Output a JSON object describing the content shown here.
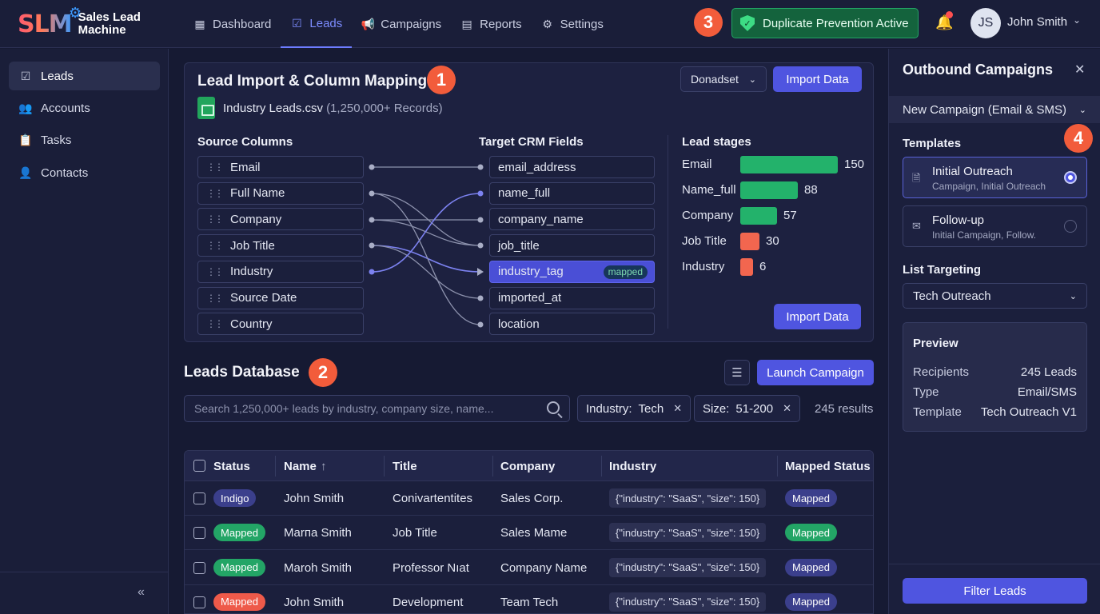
{
  "app": {
    "logo_mark": "SLM",
    "logo_line1": "Sales Lead",
    "logo_line2": "Machine"
  },
  "nav": {
    "items": [
      {
        "label": "Dashboard",
        "icon": "grid-icon"
      },
      {
        "label": "Leads",
        "icon": "checkbox-icon",
        "active": true
      },
      {
        "label": "Campaigns",
        "icon": "megaphone-icon"
      },
      {
        "label": "Reports",
        "icon": "report-icon"
      },
      {
        "label": "Settings",
        "icon": "gear-icon"
      }
    ],
    "duplicate_prevention": "Duplicate Prevention Active",
    "user": {
      "initials": "JS",
      "name": "John Smith"
    }
  },
  "callouts": {
    "one": "1",
    "two": "2",
    "three": "3",
    "four": "4"
  },
  "sidebar": {
    "items": [
      {
        "label": "Leads",
        "active": true
      },
      {
        "label": "Accounts"
      },
      {
        "label": "Tasks"
      },
      {
        "label": "Contacts"
      }
    ],
    "collapse_glyph": "«"
  },
  "import": {
    "title": "Lead Import & Column Mapping",
    "file_name": "Industry Leads.csv",
    "file_records": "(1,250,000+ Records)",
    "dataset_select": "Donadset",
    "import_button": "Import Data",
    "import_button_bottom": "Import Data",
    "source_heading": "Source Columns",
    "target_heading": "Target CRM Fields",
    "stages_heading": "Lead stages",
    "source_columns": [
      "Email",
      "Full Name",
      "Company",
      "Job Title",
      "Industry",
      "Source Date",
      "Country"
    ],
    "target_fields": [
      "email_address",
      "name_full",
      "company_name",
      "job_title",
      "industry_tag",
      "imported_at",
      "location"
    ],
    "mapped_tag": "mapped",
    "stages": [
      {
        "label": "Email",
        "value": 150,
        "color": "#23b26b"
      },
      {
        "label": "Name_full",
        "value": 88,
        "color": "#23b26b"
      },
      {
        "label": "Company",
        "value": 57,
        "color": "#23b26b"
      },
      {
        "label": "Job Title",
        "value": 30,
        "color": "#f2664f"
      },
      {
        "label": "Industry",
        "value": 6,
        "color": "#f2664f"
      }
    ]
  },
  "leads": {
    "title": "Leads Database",
    "launch_button": "Launch Campaign",
    "search_placeholder": "Search 1,250,000+ leads by industry, company size, name...",
    "chips": [
      {
        "key": "Industry:",
        "value": "Tech"
      },
      {
        "key": "Size:",
        "value": "51-200"
      }
    ],
    "results": "245 results",
    "columns": [
      "Status",
      "Name",
      "Title",
      "Company",
      "Industry",
      "Mapped Status"
    ],
    "sort_glyph": "↑",
    "rows": [
      {
        "status": "Indigo",
        "status_color": "#3b3f8c",
        "name": "John Smith",
        "title": "Conivartentites",
        "company": "Sales Corp.",
        "industry": "{\"industry\": \"SaaS\", \"size\": 150}",
        "mapped": "Mapped",
        "mapped_color": "#3b3f8c"
      },
      {
        "status": "Mapped",
        "status_color": "#23a566",
        "name": "Marпa Smith",
        "title": "Job Title",
        "company": "Sales Mame",
        "industry": "{\"industry\": \"SaaS\", \"size\": 150}",
        "mapped": "Mapped",
        "mapped_color": "#23a566"
      },
      {
        "status": "Mapped",
        "status_color": "#23a566",
        "name": "Maroh Smith",
        "title": "Professor Nıat",
        "company": "Company Name",
        "industry": "{\"industry\": \"SaaS\", \"size\": 150}",
        "mapped": "Mapped",
        "mapped_color": "#3b3f8c"
      },
      {
        "status": "Mapped",
        "status_color": "#ee5a4a",
        "name": "John Smith",
        "title": "Development",
        "company": "Team Tech",
        "industry": "{\"industry\": \"SaaS\", \"size\": 150}",
        "mapped": "Mapped",
        "mapped_color": "#3b3f8c"
      }
    ]
  },
  "campaigns": {
    "title": "Outbound Campaigns",
    "new_campaign": "New Campaign (Email & SMS)",
    "templates_label": "Templates",
    "templates": [
      {
        "title": "Initial Outreach",
        "sub": "Campaign, Initial Outreach",
        "selected": true
      },
      {
        "title": "Follow-up",
        "sub": "Initial Campaign, Follow.",
        "selected": false
      }
    ],
    "list_label": "List Targeting",
    "list_value": "Tech Outreach",
    "preview": {
      "title": "Preview",
      "rows": [
        {
          "k": "Recipients",
          "v": "245 Leads"
        },
        {
          "k": "Type",
          "v": "Email/SMS"
        },
        {
          "k": "Template",
          "v": "Tech Outreach V1"
        }
      ]
    },
    "filter_button": "Filter Leads"
  }
}
